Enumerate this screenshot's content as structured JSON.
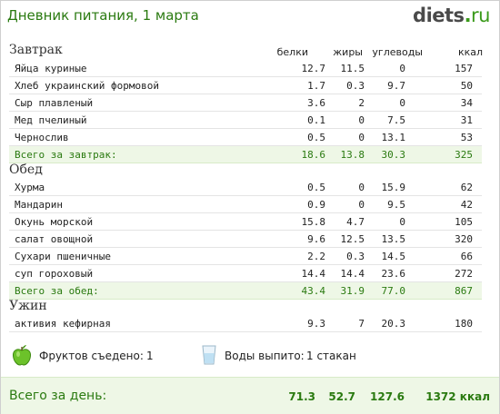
{
  "header": {
    "title": "Дневник питания, 1 марта",
    "logo_main": "diets",
    "logo_dot": ".",
    "logo_tld": "ru"
  },
  "columns": {
    "protein": "белки",
    "fat": "жиры",
    "carbs": "углеводы",
    "kcal": "ккал"
  },
  "breakfast": {
    "title": "Завтрак",
    "items": [
      {
        "name": "Яйца куриные",
        "protein": "12.7",
        "fat": "11.5",
        "carbs": "0",
        "kcal": "157"
      },
      {
        "name": "Хлеб украинский формовой",
        "protein": "1.7",
        "fat": "0.3",
        "carbs": "9.7",
        "kcal": "50"
      },
      {
        "name": "Сыр плавленый",
        "protein": "3.6",
        "fat": "2",
        "carbs": "0",
        "kcal": "34"
      },
      {
        "name": "Мед пчелиный",
        "protein": "0.1",
        "fat": "0",
        "carbs": "7.5",
        "kcal": "31"
      },
      {
        "name": "Чернослив",
        "protein": "0.5",
        "fat": "0",
        "carbs": "13.1",
        "kcal": "53"
      }
    ],
    "total": {
      "name": "Всего за завтрак:",
      "protein": "18.6",
      "fat": "13.8",
      "carbs": "30.3",
      "kcal": "325"
    }
  },
  "lunch": {
    "title": "Обед",
    "items": [
      {
        "name": "Хурма",
        "protein": "0.5",
        "fat": "0",
        "carbs": "15.9",
        "kcal": "62"
      },
      {
        "name": "Мандарин",
        "protein": "0.9",
        "fat": "0",
        "carbs": "9.5",
        "kcal": "42"
      },
      {
        "name": "Окунь морской",
        "protein": "15.8",
        "fat": "4.7",
        "carbs": "0",
        "kcal": "105"
      },
      {
        "name": "салат овощной",
        "protein": "9.6",
        "fat": "12.5",
        "carbs": "13.5",
        "kcal": "320"
      },
      {
        "name": "Сухари пшеничные",
        "protein": "2.2",
        "fat": "0.3",
        "carbs": "14.5",
        "kcal": "66"
      },
      {
        "name": "суп гороховый",
        "protein": "14.4",
        "fat": "14.4",
        "carbs": "23.6",
        "kcal": "272"
      }
    ],
    "total": {
      "name": "Всего за обед:",
      "protein": "43.4",
      "fat": "31.9",
      "carbs": "77.0",
      "kcal": "867"
    }
  },
  "dinner": {
    "title": "Ужин",
    "items": [
      {
        "name": "активия кефирная",
        "protein": "9.3",
        "fat": "7",
        "carbs": "20.3",
        "kcal": "180"
      }
    ]
  },
  "extras": {
    "fruit_icon": "apple-icon",
    "fruit_label": "Фруктов съедено:",
    "fruit_value": "1",
    "water_icon": "water-glass-icon",
    "water_label": "Воды выпито:",
    "water_value": "1 стакан"
  },
  "day_total": {
    "label": "Всего за день:",
    "protein": "71.3",
    "fat": "52.7",
    "carbs": "127.6",
    "kcal": "1372 ккал"
  },
  "colors": {
    "accent_green": "#2a7a10",
    "total_bg": "#eef7e6"
  }
}
